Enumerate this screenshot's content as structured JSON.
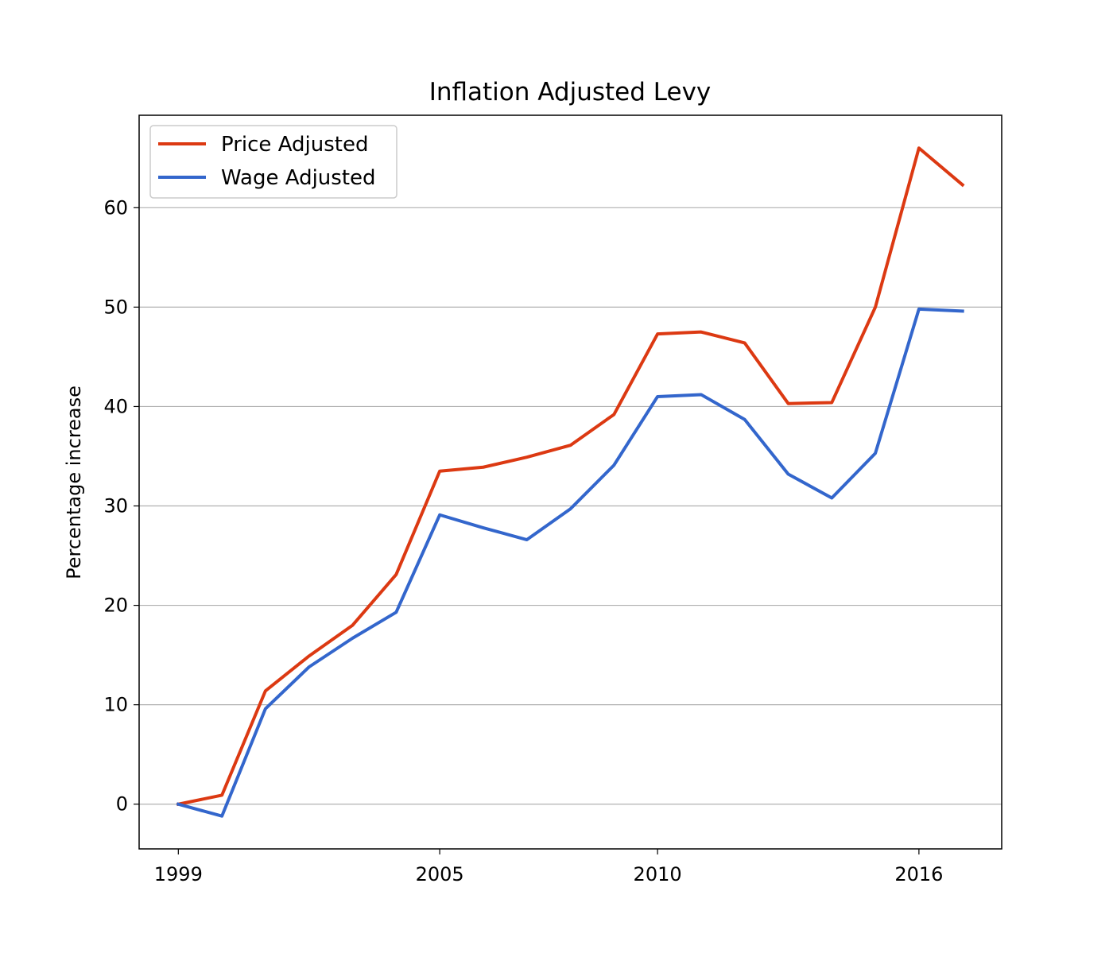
{
  "chart_data": {
    "type": "line",
    "title": "Inflation Adjusted Levy",
    "xlabel": "",
    "ylabel": "Percentage increase",
    "x": [
      1999,
      2000,
      2001,
      2002,
      2003,
      2004,
      2005,
      2006,
      2007,
      2008,
      2009,
      2010,
      2011,
      2012,
      2013,
      2014,
      2015,
      2016,
      2017
    ],
    "series": [
      {
        "name": "Price Adjusted",
        "color": "#dc3912",
        "values": [
          0.0,
          0.9,
          11.4,
          14.9,
          18.0,
          23.1,
          33.5,
          33.9,
          34.9,
          36.1,
          39.2,
          47.3,
          47.5,
          46.4,
          40.3,
          40.4,
          50.0,
          66.0,
          62.3
        ]
      },
      {
        "name": "Wage Adjusted",
        "color": "#3366cc",
        "values": [
          0.0,
          -1.2,
          9.6,
          13.8,
          16.7,
          19.3,
          29.1,
          27.8,
          26.6,
          29.7,
          34.1,
          41.0,
          41.2,
          38.7,
          33.2,
          30.8,
          35.3,
          49.8,
          49.6
        ]
      }
    ],
    "xticks": [
      1999,
      2005,
      2010,
      2016
    ],
    "yticks": [
      0,
      10,
      20,
      30,
      40,
      50,
      60
    ],
    "xlim": [
      1998.1,
      2017.9
    ],
    "ylim": [
      -4.5,
      69.3
    ],
    "grid": "horizontal",
    "legend_position": "top-left"
  }
}
